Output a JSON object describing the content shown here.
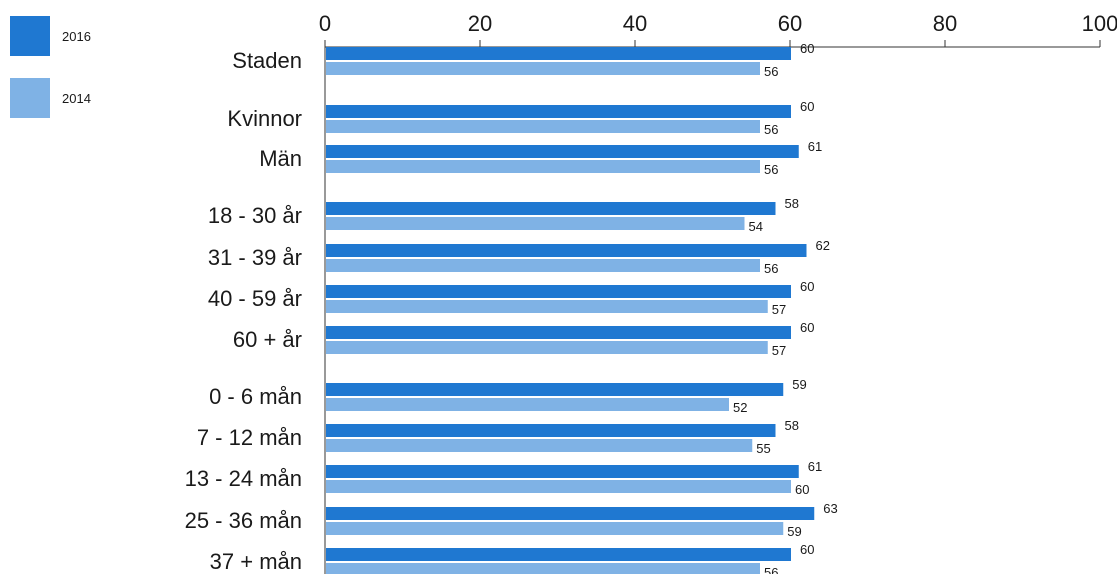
{
  "chart_data": {
    "type": "bar",
    "orientation": "horizontal",
    "categories": [
      "Staden",
      "Kvinnor",
      "Män",
      "18 - 30 år",
      "31 - 39 år",
      "40 - 59 år",
      "60 + år",
      "0 - 6 mån",
      "7 - 12 mån",
      "13 - 24 mån",
      "25 - 36 mån",
      "37 + mån"
    ],
    "series": [
      {
        "name": "2016",
        "color": "#1f78d1",
        "values": [
          60,
          60,
          61,
          58,
          62,
          60,
          60,
          59,
          58,
          61,
          63,
          60
        ]
      },
      {
        "name": "2014",
        "color": "#7fb2e5",
        "values": [
          56,
          56,
          56,
          54,
          56,
          57,
          57,
          52,
          55,
          60,
          59,
          56
        ]
      }
    ],
    "xlim": [
      0,
      100
    ],
    "xticks": [
      0,
      20,
      40,
      60,
      80,
      100
    ],
    "legend_position": "top-left",
    "data_labels": true,
    "grid": false
  }
}
